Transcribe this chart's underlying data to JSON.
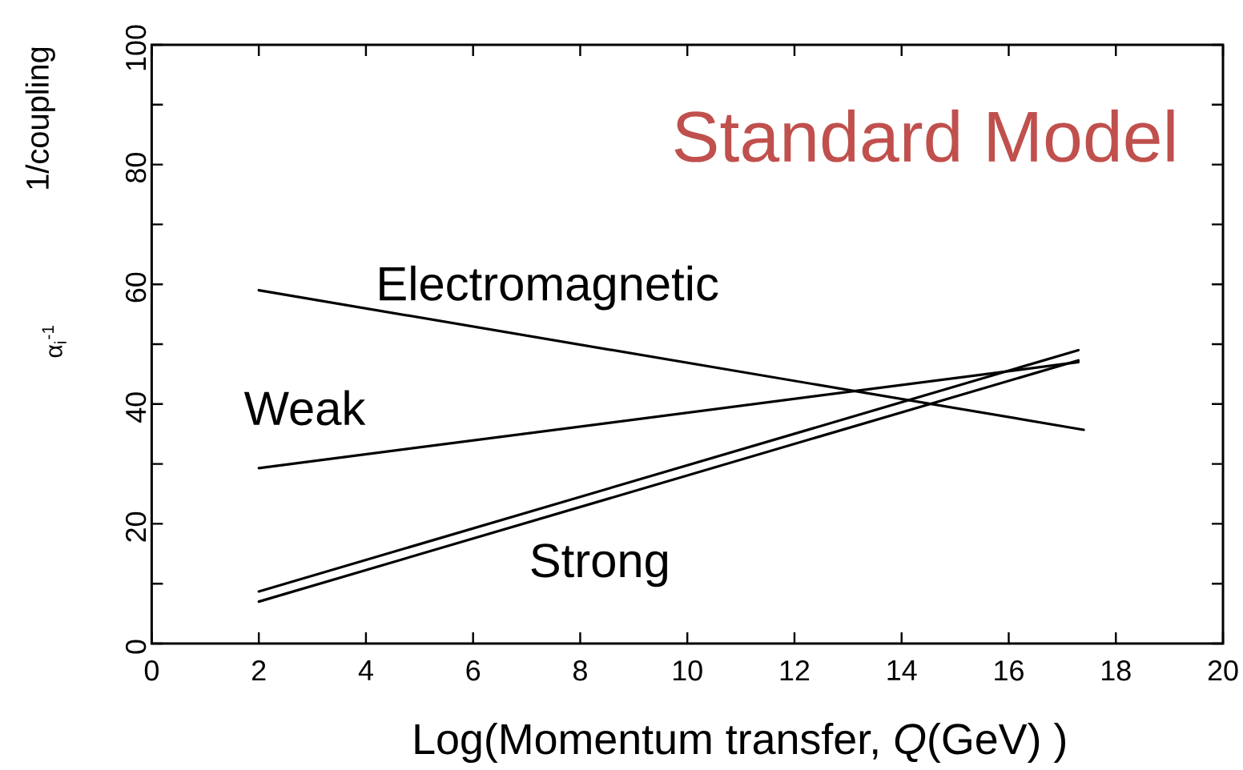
{
  "chart_data": {
    "type": "line",
    "title": "Standard Model",
    "xlabel": "Log(Momentum transfer, *Q*(GeV) )",
    "ylabel": "1/coupling",
    "annotations": [
      "α$_{i}$$^{-1}$"
    ],
    "xlim": [
      0,
      20
    ],
    "ylim": [
      0,
      100
    ],
    "xticks": [
      0,
      2,
      4,
      6,
      8,
      10,
      12,
      14,
      16,
      18,
      20
    ],
    "yticks": [
      0,
      {
        "value": 10,
        "label": null
      },
      20,
      {
        "value": 30,
        "label": null
      },
      40,
      {
        "value": 50,
        "label": null
      },
      60,
      {
        "value": 70,
        "label": null
      },
      80,
      {
        "value": 90,
        "label": null
      },
      100
    ],
    "line_style": "solid",
    "series": [
      {
        "name": "Electromagnetic",
        "color": "#000000",
        "x": [
          2,
          17.4
        ],
        "values": [
          59,
          35.7
        ]
      },
      {
        "name": "Weak",
        "color": "#000000",
        "x": [
          2,
          17.3
        ],
        "values": [
          29.3,
          47
        ]
      },
      {
        "name": "Strong",
        "color": "#000000",
        "x": [
          2,
          17.3
        ],
        "values": [
          7,
          47.3
        ]
      },
      {
        "color": "#000000",
        "x": [
          2,
          17.3
        ],
        "values": [
          8.7,
          49
        ]
      }
    ]
  }
}
